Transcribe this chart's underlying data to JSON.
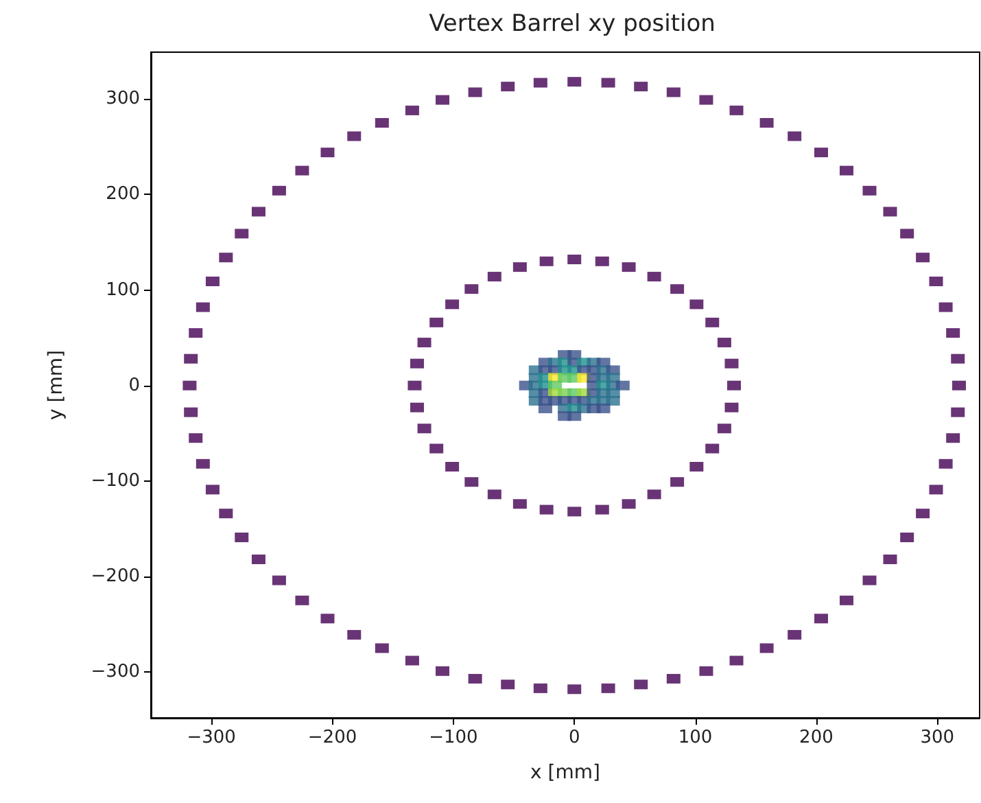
{
  "chart_data": {
    "type": "scatter",
    "title": "Vertex Barrel xy position",
    "xlabel": "x [mm]",
    "ylabel": "y [mm]",
    "xlim": [
      -350,
      335
    ],
    "ylim": [
      -348,
      349
    ],
    "xticks": [
      -300,
      -200,
      -100,
      0,
      100,
      200,
      300
    ],
    "yticks": [
      -300,
      -200,
      -100,
      0,
      100,
      200,
      300
    ],
    "marker": "square",
    "series": [
      {
        "color": "#440154",
        "x": [
          318,
          317,
          313,
          307,
          299,
          288,
          275,
          261,
          244,
          225,
          204,
          182,
          159,
          134,
          109,
          82,
          55,
          28,
          0,
          -28,
          -55,
          -82,
          -109,
          -134,
          -159,
          -182,
          -204,
          -225,
          -244,
          -261,
          -275,
          -288,
          -299,
          -307,
          -313,
          -317,
          -318,
          -317,
          -313,
          -307,
          -299,
          -288,
          -275,
          -261,
          -244,
          -225,
          -204,
          -182,
          -159,
          -134,
          -109,
          -82,
          -55,
          -28,
          0,
          28,
          55,
          82,
          109,
          134,
          159,
          182,
          204,
          225,
          244,
          261,
          275,
          288,
          299,
          307,
          313,
          317
        ],
        "values": [
          0,
          28,
          55,
          82,
          109,
          134,
          159,
          182,
          204,
          225,
          244,
          261,
          275,
          288,
          299,
          307,
          313,
          317,
          318,
          317,
          313,
          307,
          299,
          288,
          275,
          261,
          244,
          225,
          204,
          182,
          159,
          134,
          109,
          82,
          55,
          28,
          0,
          -28,
          -55,
          -82,
          -109,
          -134,
          -159,
          -182,
          -204,
          -225,
          -244,
          -261,
          -275,
          -288,
          -299,
          -307,
          -313,
          -317,
          -318,
          -317,
          -313,
          -307,
          -299,
          -288,
          -275,
          -261,
          -244,
          -225,
          -204,
          -182,
          -159,
          -134,
          -109,
          -82,
          -55,
          -28
        ]
      },
      {
        "color": "#440154",
        "x": [
          132,
          130,
          124,
          114,
          101,
          85,
          66,
          45,
          23,
          0,
          -23,
          -45,
          -66,
          -85,
          -101,
          -114,
          -124,
          -130,
          -132,
          -130,
          -124,
          -114,
          -101,
          -85,
          -66,
          -45,
          -23,
          0,
          23,
          45,
          66,
          85,
          101,
          114,
          124,
          130
        ],
        "values": [
          0,
          23,
          45,
          66,
          85,
          101,
          114,
          124,
          130,
          132,
          130,
          124,
          114,
          101,
          85,
          66,
          45,
          23,
          0,
          -23,
          -45,
          -66,
          -85,
          -101,
          -114,
          -124,
          -130,
          -132,
          -130,
          -124,
          -114,
          -101,
          -85,
          -66,
          -45,
          -23
        ]
      },
      {
        "x": [
          -8,
          0,
          -24,
          -16,
          -8,
          0,
          8,
          16,
          24,
          -32,
          -24,
          -16,
          -8,
          0,
          8,
          16,
          24,
          32,
          -32,
          -24,
          -16,
          -8,
          0,
          8,
          16,
          24,
          32,
          -40,
          -32,
          -24,
          -16,
          16,
          24,
          32,
          40,
          -32,
          -24,
          -16,
          -8,
          0,
          8,
          16,
          24,
          32,
          -32,
          -24,
          -16,
          -8,
          0,
          8,
          16,
          24,
          32,
          -24,
          -8,
          0,
          8,
          16,
          24,
          -8,
          0
        ],
        "values": [
          32,
          32,
          24,
          24,
          24,
          24,
          24,
          24,
          24,
          16,
          16,
          16,
          16,
          16,
          16,
          16,
          16,
          16,
          8,
          8,
          8,
          8,
          8,
          8,
          8,
          8,
          8,
          0,
          0,
          0,
          0,
          0,
          0,
          0,
          0,
          -8,
          -8,
          -8,
          -8,
          -8,
          -8,
          -8,
          -8,
          -8,
          -16,
          -16,
          -16,
          -16,
          -16,
          -16,
          -16,
          -16,
          -16,
          -24,
          -24,
          -24,
          -24,
          -24,
          -24,
          -32,
          -32
        ],
        "colors": [
          "#3b528b",
          "#3b528b",
          "#3b528b",
          "#2c728e",
          "#21908d",
          "#3b528b",
          "#21908d",
          "#2c728e",
          "#3b528b",
          "#2c728e",
          "#3b528b",
          "#3b528b",
          "#21908d",
          "#21908d",
          "#3b528b",
          "#3b528b",
          "#2c728e",
          "#3b528b",
          "#2c728e",
          "#21908d",
          "#fde725",
          "#5ec962",
          "#5ec962",
          "#fde725",
          "#3b528b",
          "#2c728e",
          "#2c728e",
          "#3b528b",
          "#2c728e",
          "#21908d",
          "#5ec962",
          "#3b528b",
          "#21908d",
          "#2c728e",
          "#3b528b",
          "#2c728e",
          "#3b528b",
          "#a0da39",
          "#7ad151",
          "#5ec962",
          "#a0da39",
          "#3b528b",
          "#2c728e",
          "#2c728e",
          "#2c728e",
          "#3b528b",
          "#3b528b",
          "#3b528b",
          "#3b528b",
          "#3b528b",
          "#2c728e",
          "#2c728e",
          "#2c728e",
          "#3b528b",
          "#2c728e",
          "#21908d",
          "#2c728e",
          "#3b528b",
          "#3b528b",
          "#3b528b",
          "#3b528b"
        ]
      }
    ]
  }
}
